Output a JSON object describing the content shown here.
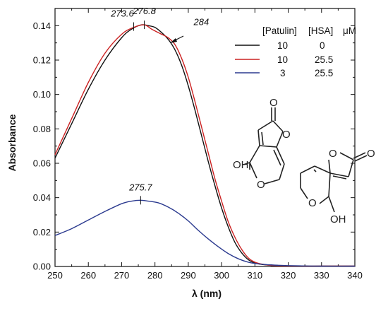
{
  "chart_data": {
    "type": "line",
    "xlabel": "λ (nm)",
    "ylabel": "Absorbance",
    "xlim": [
      250,
      340
    ],
    "ylim": [
      0,
      0.15
    ],
    "x_ticks": [
      "250",
      "260",
      "270",
      "280",
      "290",
      "300",
      "310",
      "320",
      "330",
      "340"
    ],
    "y_ticks": [
      "0.00",
      "0.02",
      "0.04",
      "0.06",
      "0.08",
      "0.10",
      "0.12",
      "0.14"
    ],
    "legend": {
      "headers": [
        "[Patulin]",
        "[HSA]",
        "μM"
      ],
      "rows": [
        {
          "patulin": "10",
          "hsa": "0",
          "color": "#111111"
        },
        {
          "patulin": "10",
          "hsa": "25.5",
          "color": "#cc2222"
        },
        {
          "patulin": "3",
          "hsa": "25.5",
          "color": "#2b3a8f"
        }
      ]
    },
    "series": [
      {
        "color": "#111111",
        "x": [
          250,
          255,
          260,
          265,
          270,
          273,
          276,
          278,
          280,
          282,
          284,
          286,
          288,
          290,
          292,
          294,
          296,
          298,
          300,
          302,
          304,
          306,
          308,
          310,
          312,
          314,
          316,
          320,
          325,
          330,
          340
        ],
        "y": [
          0.063,
          0.083,
          0.103,
          0.12,
          0.133,
          0.138,
          0.1405,
          0.14,
          0.139,
          0.136,
          0.132,
          0.126,
          0.117,
          0.105,
          0.091,
          0.076,
          0.061,
          0.047,
          0.034,
          0.023,
          0.014,
          0.008,
          0.004,
          0.002,
          0.0012,
          0.0008,
          0.0005,
          0.0003,
          0.0002,
          0.0002,
          0.0002
        ]
      },
      {
        "color": "#cc2222",
        "x": [
          250,
          255,
          260,
          265,
          270,
          273.6,
          276.8,
          279,
          282,
          284,
          286,
          288,
          290,
          292,
          294,
          296,
          298,
          300,
          302,
          304,
          306,
          308,
          310,
          312,
          314,
          316,
          320,
          325,
          330,
          340
        ],
        "y": [
          0.065,
          0.086,
          0.107,
          0.124,
          0.135,
          0.139,
          0.1405,
          0.138,
          0.135,
          0.133,
          0.129,
          0.121,
          0.11,
          0.096,
          0.081,
          0.066,
          0.051,
          0.038,
          0.026,
          0.017,
          0.01,
          0.005,
          0.0025,
          0.0014,
          0.0008,
          0.0005,
          0.0003,
          0.0002,
          0.0002,
          0.0002
        ]
      },
      {
        "color": "#2b3a8f",
        "x": [
          250,
          255,
          260,
          265,
          270,
          273,
          275.7,
          278,
          281,
          284,
          287,
          290,
          293,
          296,
          299,
          302,
          305,
          308,
          311,
          314,
          317,
          320,
          325,
          330,
          340
        ],
        "y": [
          0.018,
          0.022,
          0.027,
          0.032,
          0.0365,
          0.038,
          0.0385,
          0.038,
          0.037,
          0.0345,
          0.031,
          0.0265,
          0.021,
          0.016,
          0.0115,
          0.0075,
          0.0045,
          0.0025,
          0.0015,
          0.001,
          0.0007,
          0.0005,
          0.0003,
          0.0002,
          0.0002
        ]
      }
    ],
    "annotations": [
      {
        "text": "273.6",
        "x": 273.6,
        "y": 0.1395
      },
      {
        "text": "276.8",
        "x": 276.8,
        "y": 0.1405
      },
      {
        "text": "284",
        "x": 284,
        "y": 0.133
      },
      {
        "text": "275.7",
        "x": 275.7,
        "y": 0.0385
      }
    ],
    "structure_labels": [
      "O",
      "O",
      "O",
      "OH",
      "O",
      "O",
      "O",
      "OH"
    ]
  }
}
